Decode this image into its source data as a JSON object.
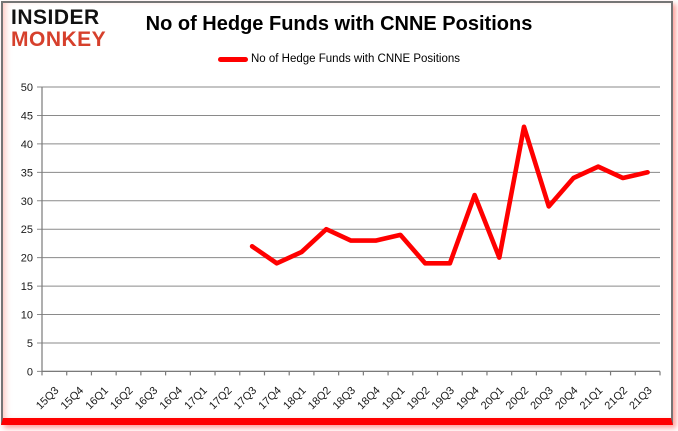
{
  "logo": {
    "line1": "INSIDER",
    "line2": "MONKEY"
  },
  "header": {
    "title": "No of Hedge Funds with CNNE Positions"
  },
  "legend": {
    "label": "No of Hedge Funds with CNNE Positions"
  },
  "colors": {
    "line": "#ff0000",
    "grid": "#8a8a8a",
    "axis": "#7a7a7a",
    "text": "#1a1a1a",
    "logo_red": "#d6402c",
    "frame_bottom": "#ff0000"
  },
  "chart_data": {
    "type": "line",
    "title": "No of Hedge Funds with CNNE Positions",
    "xlabel": "",
    "ylabel": "",
    "ylim": [
      0,
      50
    ],
    "ytick_step": 5,
    "grid": true,
    "legend_position": "top",
    "categories": [
      "15Q3",
      "15Q4",
      "16Q1",
      "16Q2",
      "16Q3",
      "16Q4",
      "17Q1",
      "17Q2",
      "17Q3",
      "17Q4",
      "18Q1",
      "18Q2",
      "18Q3",
      "18Q4",
      "19Q1",
      "19Q2",
      "19Q3",
      "19Q4",
      "20Q1",
      "20Q2",
      "20Q3",
      "20Q4",
      "21Q1",
      "21Q2",
      "21Q3"
    ],
    "series": [
      {
        "name": "No of Hedge Funds with CNNE Positions",
        "color": "#ff0000",
        "values": [
          null,
          null,
          null,
          null,
          null,
          null,
          null,
          null,
          22,
          19,
          21,
          25,
          23,
          23,
          24,
          19,
          19,
          31,
          20,
          43,
          29,
          34,
          36,
          34,
          35
        ]
      }
    ]
  }
}
